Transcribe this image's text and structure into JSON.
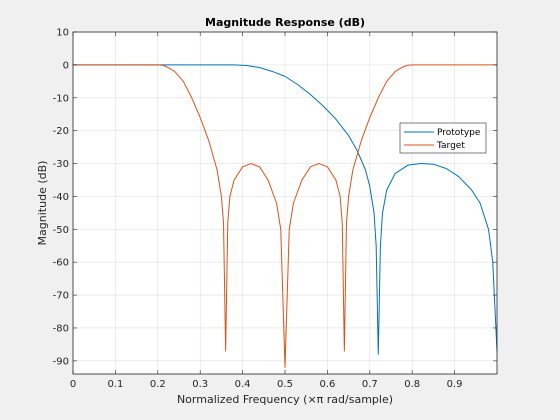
{
  "chart_data": {
    "type": "line",
    "title": "Magnitude Response (dB)",
    "xlabel": "Normalized Frequency (×π rad/sample)",
    "ylabel": "Magnitude (dB)",
    "xlim": [
      0,
      1
    ],
    "ylim": [
      -94,
      10
    ],
    "xticks": [
      0,
      0.1,
      0.2,
      0.3,
      0.4,
      0.5,
      0.6,
      0.7,
      0.8,
      0.9
    ],
    "xtick_labels": [
      "0",
      "0.1",
      "0.2",
      "0.3",
      "0.4",
      "0.5",
      "0.6",
      "0.7",
      "0.8",
      "0.9"
    ],
    "yticks": [
      10,
      0,
      -10,
      -20,
      -30,
      -40,
      -50,
      -60,
      -70,
      -80,
      -90
    ],
    "ytick_labels": [
      "10",
      "0",
      "-10",
      "-20",
      "-30",
      "-40",
      "-50",
      "-60",
      "-70",
      "-80",
      "-90"
    ],
    "grid": true,
    "legend": "right",
    "series": [
      {
        "name": "Prototype",
        "color": "#0072bd",
        "points": [
          [
            0,
            0
          ],
          [
            0.1,
            0
          ],
          [
            0.2,
            0
          ],
          [
            0.3,
            0
          ],
          [
            0.38,
            0
          ],
          [
            0.41,
            -0.2
          ],
          [
            0.44,
            -0.8
          ],
          [
            0.47,
            -2
          ],
          [
            0.5,
            -3.5
          ],
          [
            0.53,
            -6
          ],
          [
            0.56,
            -9
          ],
          [
            0.59,
            -12.5
          ],
          [
            0.62,
            -16.5
          ],
          [
            0.65,
            -21.5
          ],
          [
            0.67,
            -26
          ],
          [
            0.69,
            -32
          ],
          [
            0.7,
            -37
          ],
          [
            0.71,
            -45
          ],
          [
            0.715,
            -55
          ],
          [
            0.72,
            -88
          ],
          [
            0.725,
            -55
          ],
          [
            0.73,
            -45
          ],
          [
            0.74,
            -38
          ],
          [
            0.76,
            -33
          ],
          [
            0.79,
            -30.5
          ],
          [
            0.82,
            -30
          ],
          [
            0.85,
            -30.2
          ],
          [
            0.88,
            -31.5
          ],
          [
            0.91,
            -34
          ],
          [
            0.94,
            -38
          ],
          [
            0.96,
            -42
          ],
          [
            0.98,
            -50
          ],
          [
            0.99,
            -60
          ],
          [
            1.0,
            -87
          ]
        ]
      },
      {
        "name": "Target",
        "color": "#d95319",
        "points": [
          [
            0,
            0
          ],
          [
            0.1,
            0
          ],
          [
            0.2,
            0
          ],
          [
            0.21,
            -0.1
          ],
          [
            0.22,
            -0.5
          ],
          [
            0.24,
            -2
          ],
          [
            0.26,
            -5
          ],
          [
            0.28,
            -10
          ],
          [
            0.3,
            -16
          ],
          [
            0.32,
            -23
          ],
          [
            0.34,
            -32
          ],
          [
            0.35,
            -40
          ],
          [
            0.355,
            -48
          ],
          [
            0.36,
            -87
          ],
          [
            0.365,
            -48
          ],
          [
            0.37,
            -40
          ],
          [
            0.38,
            -35
          ],
          [
            0.4,
            -31
          ],
          [
            0.42,
            -30
          ],
          [
            0.44,
            -31
          ],
          [
            0.46,
            -35
          ],
          [
            0.48,
            -42
          ],
          [
            0.49,
            -50
          ],
          [
            0.5,
            -92
          ],
          [
            0.51,
            -50
          ],
          [
            0.52,
            -42
          ],
          [
            0.54,
            -35
          ],
          [
            0.56,
            -31
          ],
          [
            0.58,
            -30
          ],
          [
            0.6,
            -31
          ],
          [
            0.62,
            -35
          ],
          [
            0.63,
            -40
          ],
          [
            0.635,
            -48
          ],
          [
            0.64,
            -87
          ],
          [
            0.645,
            -48
          ],
          [
            0.65,
            -40
          ],
          [
            0.66,
            -32
          ],
          [
            0.68,
            -23
          ],
          [
            0.7,
            -16
          ],
          [
            0.72,
            -10
          ],
          [
            0.74,
            -5
          ],
          [
            0.76,
            -2
          ],
          [
            0.78,
            -0.5
          ],
          [
            0.79,
            -0.1
          ],
          [
            0.8,
            0
          ],
          [
            0.9,
            0
          ],
          [
            1.0,
            0
          ]
        ]
      }
    ]
  }
}
